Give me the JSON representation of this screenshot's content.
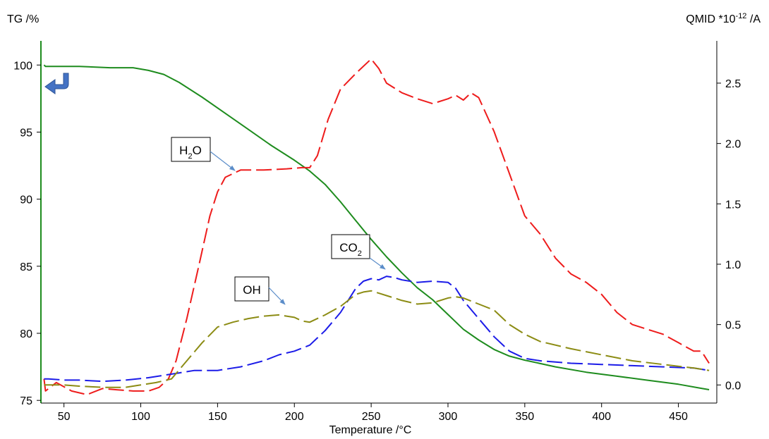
{
  "chart_data": {
    "type": "line",
    "title": "",
    "xlabel": "Temperature /°C",
    "ylabel_left": "TG /%",
    "ylabel_right_base": "QMID *10",
    "ylabel_right_exp": "-12",
    "ylabel_right_unit": " /A",
    "xlim": [
      35,
      475
    ],
    "ylim_left": [
      74.8,
      101.8
    ],
    "ylim_right": [
      -0.15,
      2.85
    ],
    "x_ticks": [
      50,
      100,
      150,
      200,
      250,
      300,
      350,
      400,
      450
    ],
    "y_left_ticks": [
      75,
      80,
      85,
      90,
      95,
      100
    ],
    "y_right_ticks": [
      0.0,
      0.5,
      1.0,
      1.5,
      2.0,
      2.5
    ],
    "y_right_tick_labels": [
      "0.0",
      "0.5",
      "1.0",
      "1.5",
      "2.0",
      "2.5"
    ],
    "grid": false,
    "series": [
      {
        "key": "tg",
        "axis": "left",
        "color": "#1e8c1e",
        "style": "solid",
        "x": [
          37,
          38,
          45,
          60,
          80,
          95,
          105,
          115,
          125,
          140,
          155,
          170,
          185,
          200,
          210,
          220,
          230,
          240,
          250,
          260,
          270,
          280,
          290,
          300,
          310,
          320,
          330,
          340,
          350,
          370,
          390,
          410,
          430,
          450,
          465,
          470
        ],
        "values": [
          100.0,
          99.9,
          99.9,
          99.9,
          99.8,
          99.8,
          99.6,
          99.3,
          98.7,
          97.6,
          96.4,
          95.2,
          94.0,
          92.9,
          92.1,
          91.1,
          89.8,
          88.4,
          87.0,
          85.7,
          84.5,
          83.4,
          82.5,
          81.4,
          80.3,
          79.5,
          78.8,
          78.3,
          78.0,
          77.5,
          77.1,
          76.8,
          76.5,
          76.2,
          75.9,
          75.8
        ]
      },
      {
        "key": "h2o",
        "axis": "right",
        "color": "#ee1c1c",
        "style": "dashed",
        "x": [
          37,
          38,
          45,
          55,
          65,
          75,
          85,
          95,
          105,
          112,
          118,
          123,
          130,
          138,
          145,
          150,
          155,
          165,
          180,
          195,
          205,
          210,
          215,
          222,
          230,
          240,
          250,
          255,
          260,
          270,
          280,
          290,
          300,
          305,
          310,
          315,
          320,
          330,
          340,
          350,
          360,
          370,
          380,
          390,
          400,
          410,
          420,
          430,
          440,
          450,
          460,
          465,
          470
        ],
        "values": [
          0.05,
          -0.05,
          0.02,
          -0.05,
          -0.08,
          -0.03,
          -0.04,
          -0.05,
          -0.05,
          -0.02,
          0.05,
          0.2,
          0.55,
          1.0,
          1.4,
          1.6,
          1.72,
          1.78,
          1.78,
          1.79,
          1.8,
          1.8,
          1.9,
          2.2,
          2.45,
          2.58,
          2.7,
          2.62,
          2.5,
          2.42,
          2.37,
          2.33,
          2.37,
          2.4,
          2.36,
          2.42,
          2.38,
          2.1,
          1.75,
          1.4,
          1.25,
          1.05,
          0.92,
          0.85,
          0.75,
          0.6,
          0.5,
          0.46,
          0.42,
          0.35,
          0.28,
          0.28,
          0.18
        ]
      },
      {
        "key": "co2",
        "axis": "right",
        "color": "#1c1ce8",
        "style": "dashed",
        "x": [
          37,
          40,
          50,
          60,
          75,
          90,
          105,
          115,
          125,
          135,
          150,
          165,
          180,
          190,
          200,
          210,
          220,
          230,
          240,
          245,
          250,
          255,
          260,
          265,
          270,
          280,
          290,
          300,
          305,
          310,
          320,
          330,
          340,
          350,
          360,
          380,
          400,
          420,
          440,
          460,
          470
        ],
        "values": [
          0.05,
          0.05,
          0.04,
          0.04,
          0.03,
          0.04,
          0.06,
          0.08,
          0.1,
          0.12,
          0.12,
          0.15,
          0.2,
          0.25,
          0.28,
          0.33,
          0.45,
          0.6,
          0.8,
          0.86,
          0.88,
          0.87,
          0.9,
          0.89,
          0.87,
          0.85,
          0.86,
          0.85,
          0.8,
          0.7,
          0.55,
          0.4,
          0.28,
          0.22,
          0.2,
          0.18,
          0.17,
          0.16,
          0.15,
          0.14,
          0.12
        ]
      },
      {
        "key": "oh",
        "axis": "right",
        "color": "#8c8c14",
        "style": "dashed",
        "x": [
          37,
          40,
          50,
          60,
          75,
          90,
          100,
          110,
          120,
          130,
          140,
          150,
          160,
          170,
          180,
          190,
          200,
          205,
          210,
          220,
          230,
          240,
          245,
          250,
          255,
          260,
          265,
          270,
          280,
          290,
          300,
          305,
          310,
          320,
          330,
          340,
          350,
          360,
          380,
          400,
          420,
          440,
          460,
          470
        ],
        "values": [
          0.0,
          0.0,
          0.0,
          -0.01,
          -0.02,
          -0.02,
          0.0,
          0.02,
          0.05,
          0.2,
          0.35,
          0.48,
          0.52,
          0.55,
          0.57,
          0.58,
          0.56,
          0.53,
          0.52,
          0.58,
          0.65,
          0.75,
          0.77,
          0.78,
          0.76,
          0.74,
          0.72,
          0.7,
          0.67,
          0.68,
          0.72,
          0.73,
          0.72,
          0.67,
          0.62,
          0.5,
          0.42,
          0.36,
          0.3,
          0.25,
          0.2,
          0.17,
          0.14,
          0.12
        ]
      }
    ],
    "annotations": [
      {
        "key": "h2o",
        "main": "H",
        "sub": "2",
        "rest": "O"
      },
      {
        "key": "co2",
        "main": "CO",
        "sub": "2",
        "rest": ""
      },
      {
        "key": "oh",
        "main": "OH",
        "sub": "",
        "rest": ""
      }
    ]
  }
}
